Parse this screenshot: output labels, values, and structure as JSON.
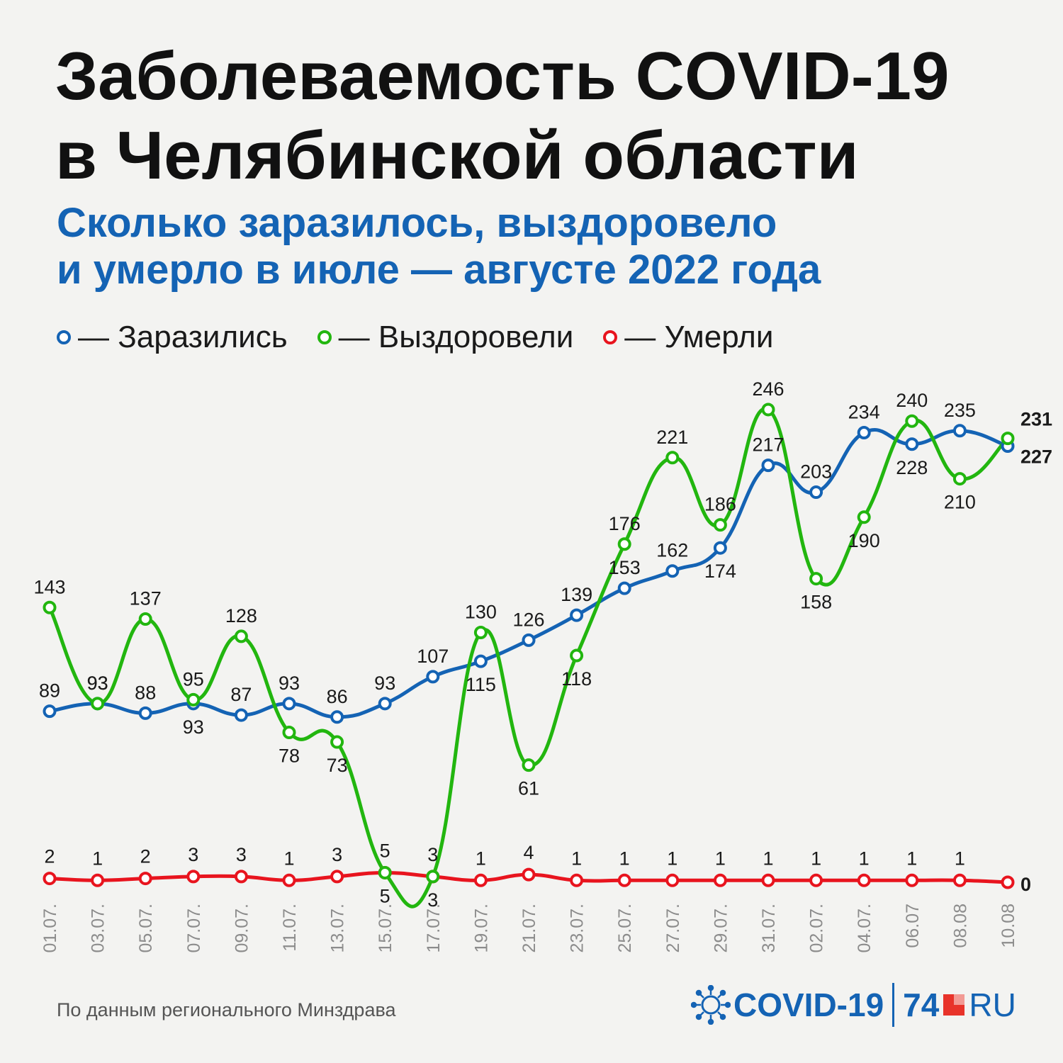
{
  "header": {
    "title_line1": "Заболеваемость COVID-19",
    "title_line2": "в Челябинской области",
    "subtitle_line1": "Сколько заразилось, выздоровело",
    "subtitle_line2": "и умерло в июле — августе 2022 года"
  },
  "legend": [
    {
      "label": "— Заразились",
      "color": "#1463b4"
    },
    {
      "label": "— Выздоровели",
      "color": "#22b60f"
    },
    {
      "label": "— Умерли",
      "color": "#e8141e"
    }
  ],
  "chart_data": {
    "type": "line",
    "categories": [
      "01.07.",
      "03.07.",
      "05.07.",
      "07.07.",
      "09.07.",
      "11.07.",
      "13.07.",
      "15.07.",
      "17.07.",
      "19.07.",
      "21.07.",
      "23.07.",
      "25.07.",
      "27.07.",
      "29.07.",
      "31.07.",
      "02.07.",
      "04.07.",
      "06.07",
      "08.08",
      "10.08"
    ],
    "series": [
      {
        "name": "Заразились",
        "color": "#1463b4",
        "values": [
          89,
          93,
          88,
          93,
          87,
          93,
          86,
          93,
          107,
          115,
          126,
          139,
          153,
          162,
          174,
          217,
          203,
          234,
          228,
          235,
          227
        ]
      },
      {
        "name": "Выздоровели",
        "color": "#22b60f",
        "values": [
          143,
          93,
          137,
          95,
          128,
          78,
          73,
          5,
          3,
          130,
          61,
          118,
          176,
          221,
          186,
          246,
          158,
          190,
          240,
          210,
          231
        ]
      },
      {
        "name": "Умерли",
        "color": "#e8141e",
        "values": [
          2,
          1,
          2,
          3,
          3,
          1,
          3,
          5,
          3,
          1,
          4,
          1,
          1,
          1,
          1,
          1,
          1,
          1,
          1,
          1,
          0
        ]
      }
    ],
    "ylim": [
      0,
      260
    ],
    "grid": false,
    "legend_position": "top-left"
  },
  "footer": {
    "source": "По данным регионального Минздрава",
    "logo_covid": "COVID-19",
    "logo_74": "74",
    "logo_ru": "RU"
  }
}
